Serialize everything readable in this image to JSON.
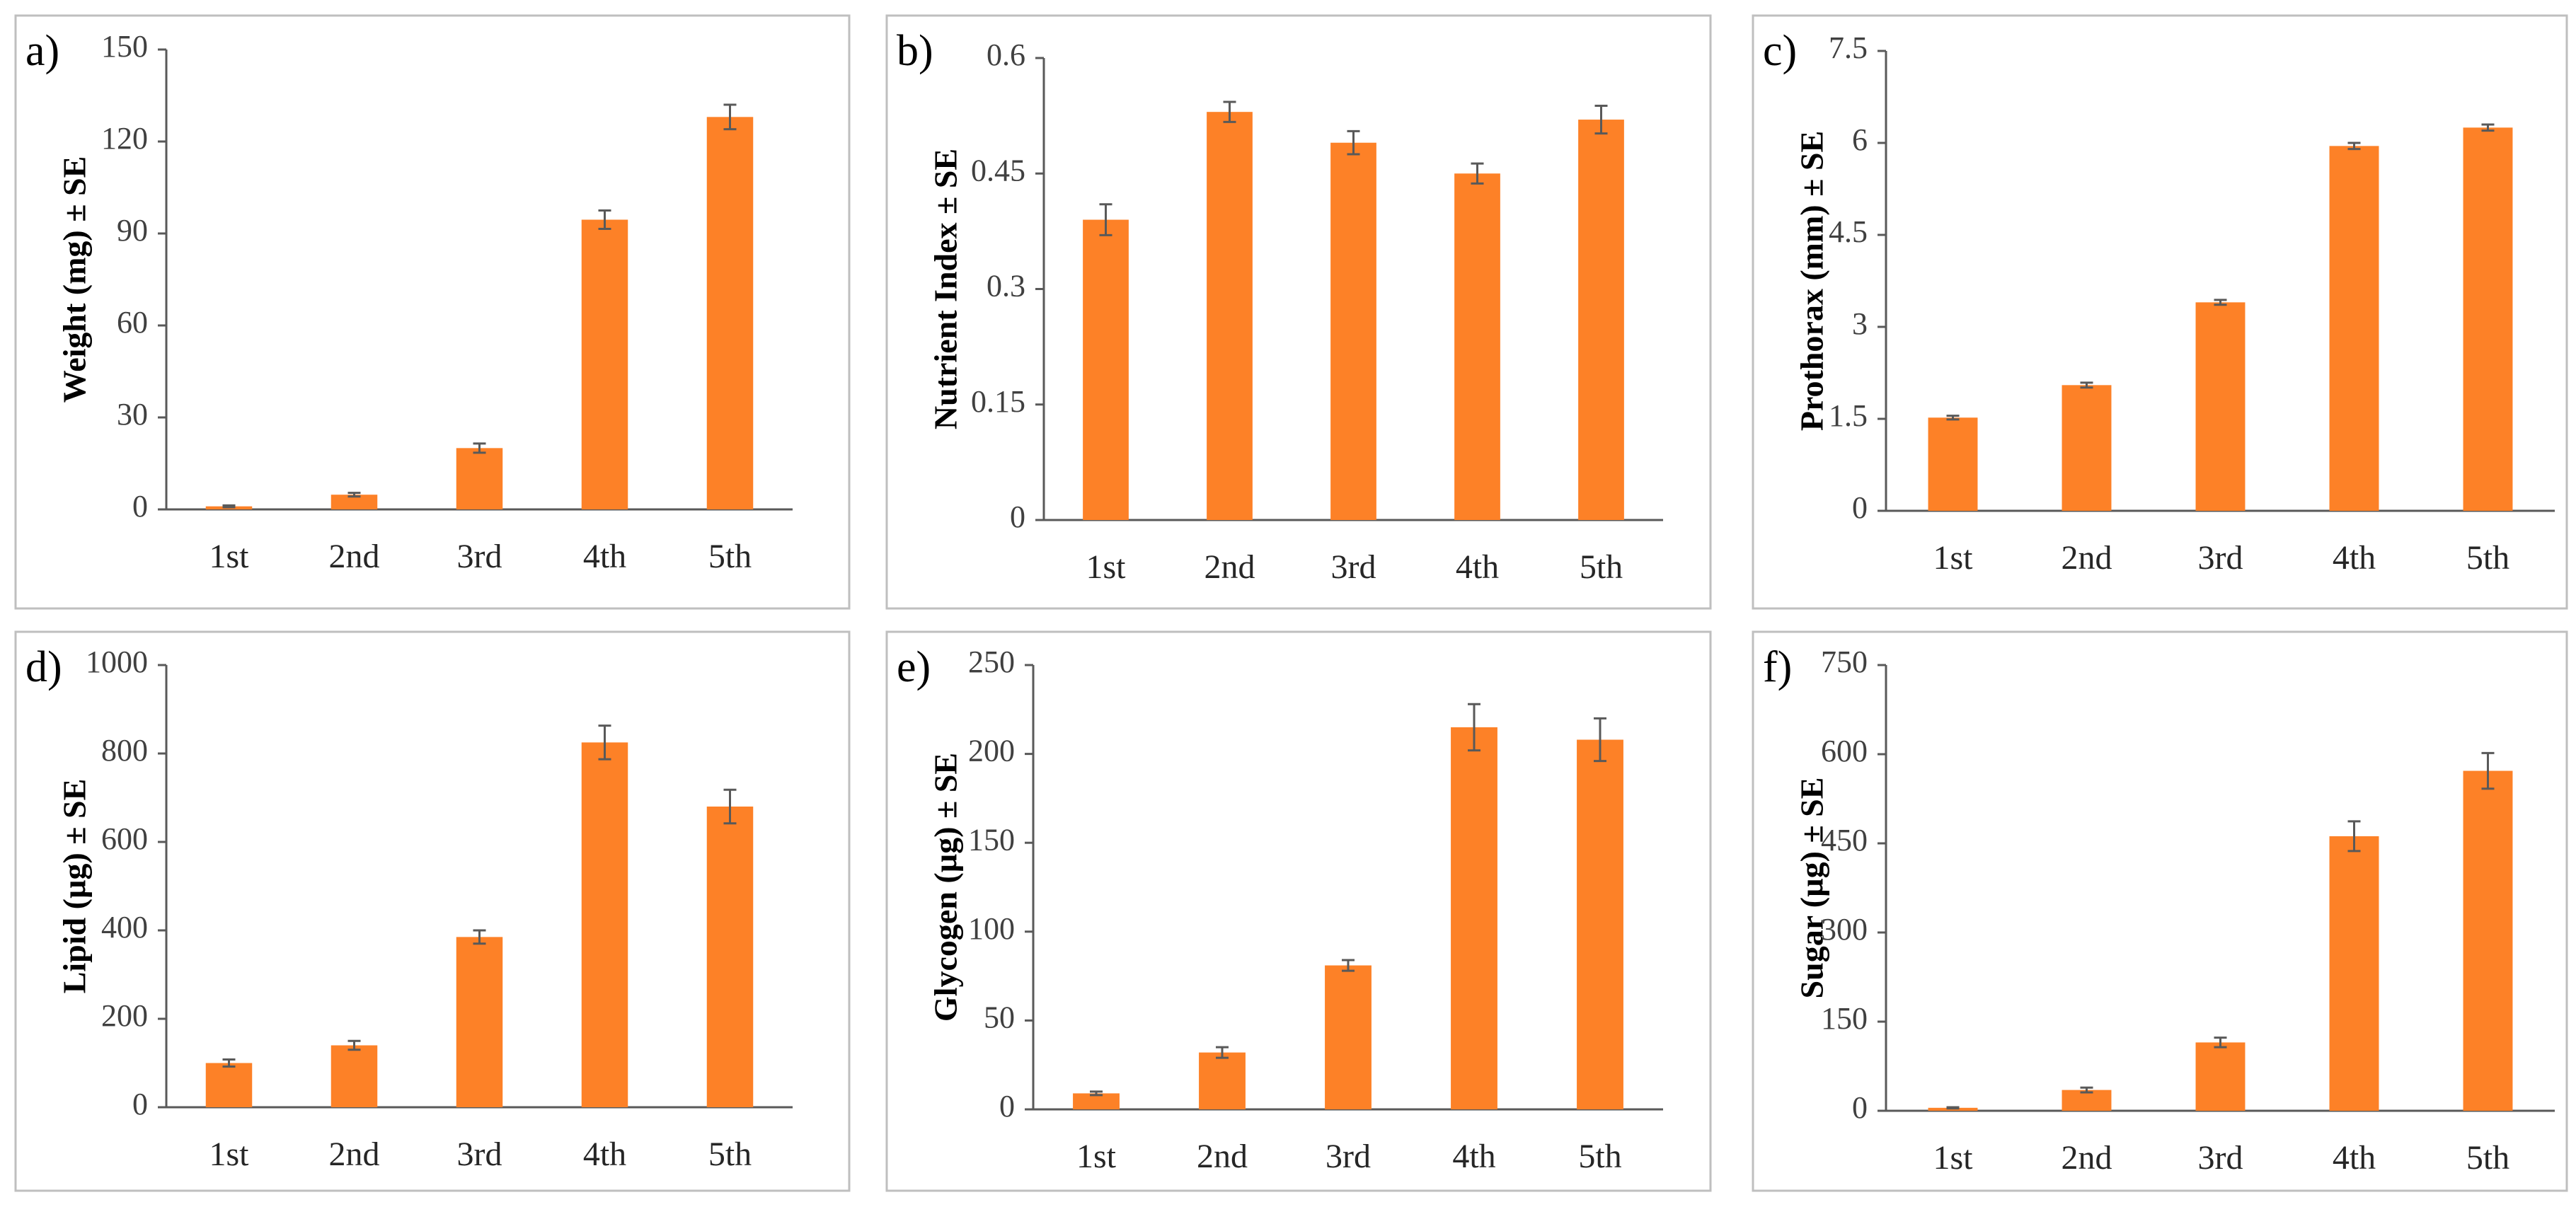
{
  "chart_data": [
    {
      "type": "bar",
      "panel_label": "a)",
      "ylabel": "Weight (mg) ± SE",
      "categories": [
        "1st",
        "2nd",
        "3rd",
        "4th",
        "5th"
      ],
      "values": [
        1,
        4.8,
        20,
        94.5,
        128
      ],
      "errors": [
        0.3,
        0.6,
        1.5,
        3,
        4
      ],
      "ylim": [
        0,
        150
      ],
      "yticks": [
        0,
        30,
        60,
        90,
        120,
        150
      ],
      "ytick_labels": [
        "0",
        "30",
        "60",
        "90",
        "120",
        "150"
      ]
    },
    {
      "type": "bar",
      "panel_label": "b)",
      "ylabel": "Nutrient Index ± SE",
      "categories": [
        "1st",
        "2nd",
        "3rd",
        "4th",
        "5th"
      ],
      "values": [
        0.39,
        0.53,
        0.49,
        0.45,
        0.52
      ],
      "errors": [
        0.02,
        0.013,
        0.015,
        0.013,
        0.018
      ],
      "ylim": [
        0,
        0.6
      ],
      "yticks": [
        0,
        0.15,
        0.3,
        0.45,
        0.6
      ],
      "ytick_labels": [
        "0",
        "0.15",
        "0.3",
        "0.45",
        "0.6"
      ]
    },
    {
      "type": "bar",
      "panel_label": "c)",
      "ylabel": "Prothorax (mm) ± SE",
      "categories": [
        "1st",
        "2nd",
        "3rd",
        "4th",
        "5th"
      ],
      "values": [
        1.52,
        2.05,
        3.4,
        5.95,
        6.25
      ],
      "errors": [
        0.03,
        0.04,
        0.04,
        0.05,
        0.05
      ],
      "ylim": [
        0,
        7.5
      ],
      "yticks": [
        0,
        1.5,
        3,
        4.5,
        6,
        7.5
      ],
      "ytick_labels": [
        "0",
        "1.5",
        "3",
        "4.5",
        "6",
        "7.5"
      ]
    },
    {
      "type": "bar",
      "panel_label": "d)",
      "ylabel": "Lipid (µg) ± SE",
      "categories": [
        "1st",
        "2nd",
        "3rd",
        "4th",
        "5th"
      ],
      "values": [
        100,
        140,
        385,
        825,
        680
      ],
      "errors": [
        8,
        10,
        15,
        38,
        38
      ],
      "ylim": [
        0,
        1000
      ],
      "yticks": [
        0,
        200,
        400,
        600,
        800,
        1000
      ],
      "ytick_labels": [
        "0",
        "200",
        "400",
        "600",
        "800",
        "1000"
      ]
    },
    {
      "type": "bar",
      "panel_label": "e)",
      "ylabel": "Glycogen (µg) ± SE",
      "categories": [
        "1st",
        "2nd",
        "3rd",
        "4th",
        "5th"
      ],
      "values": [
        9,
        32,
        81,
        215,
        208
      ],
      "errors": [
        1,
        3,
        3,
        13,
        12
      ],
      "ylim": [
        0,
        250
      ],
      "yticks": [
        0,
        50,
        100,
        150,
        200,
        250
      ],
      "ytick_labels": [
        "0",
        "50",
        "100",
        "150",
        "200",
        "250"
      ]
    },
    {
      "type": "bar",
      "panel_label": "f)",
      "ylabel": "Sugar (µg) ± SE",
      "categories": [
        "1st",
        "2nd",
        "3rd",
        "4th",
        "5th"
      ],
      "values": [
        5,
        35,
        115,
        462,
        572
      ],
      "errors": [
        1,
        4,
        8,
        25,
        30
      ],
      "ylim": [
        0,
        750
      ],
      "yticks": [
        0,
        150,
        300,
        450,
        600,
        750
      ],
      "ytick_labels": [
        "0",
        "150",
        "300",
        "450",
        "600",
        "750"
      ]
    }
  ],
  "colors": {
    "bar": "#fd8127",
    "axis": "#595959",
    "frame": "#bfbfbf"
  }
}
